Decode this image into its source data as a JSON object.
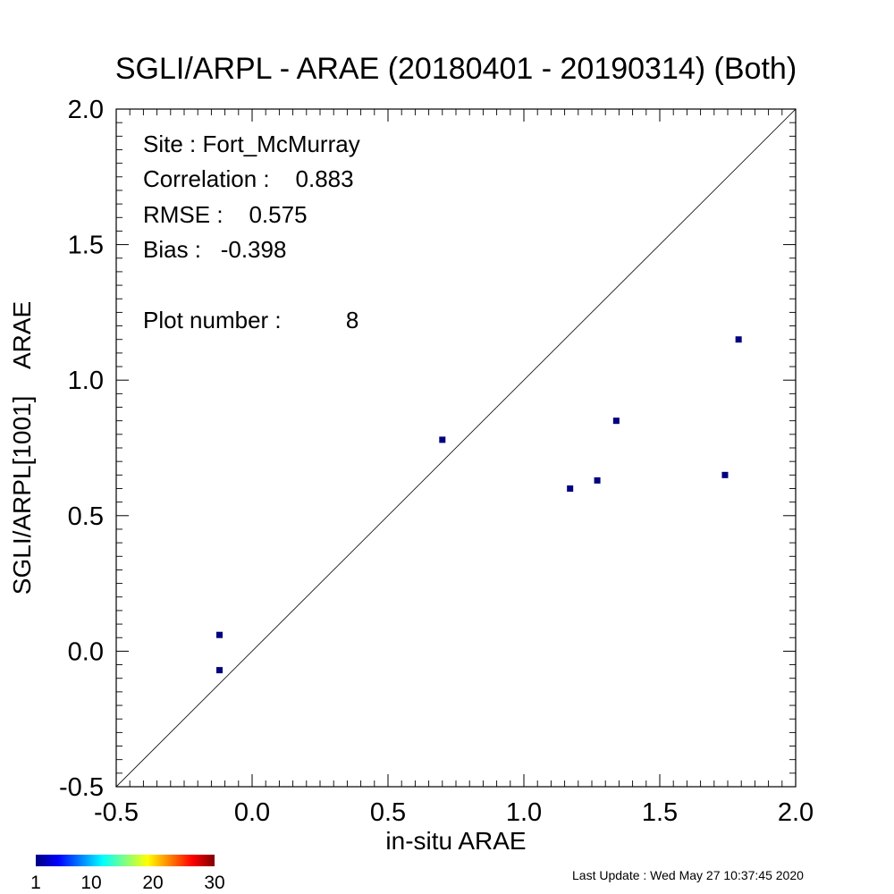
{
  "chart_data": {
    "type": "scatter",
    "title": "SGLI/ARPL - ARAE (20180401 - 20190314) (Both)",
    "xlabel": "in-situ ARAE",
    "ylabel": "SGLI/ARPL[1001]    ARAE",
    "xlim": [
      -0.5,
      2.0
    ],
    "ylim": [
      -0.5,
      2.0
    ],
    "x_ticks": [
      "-0.5",
      "0.0",
      "0.5",
      "1.0",
      "1.5",
      "2.0"
    ],
    "y_ticks": [
      "-0.5",
      "0.0",
      "0.5",
      "1.0",
      "1.5",
      "2.0"
    ],
    "one_to_one_line": true,
    "grid": false,
    "point_color": "#00007f",
    "points": [
      {
        "x": -0.12,
        "y": 0.06
      },
      {
        "x": -0.12,
        "y": -0.07
      },
      {
        "x": 0.7,
        "y": 0.78
      },
      {
        "x": 1.17,
        "y": 0.6
      },
      {
        "x": 1.27,
        "y": 0.63
      },
      {
        "x": 1.34,
        "y": 0.85
      },
      {
        "x": 1.74,
        "y": 0.65
      },
      {
        "x": 1.79,
        "y": 1.15
      }
    ],
    "stats": {
      "site": "Site : Fort_McMurray",
      "correlation": "Correlation :    0.883",
      "rmse": "RMSE :    0.575",
      "bias": "Bias :   -0.398",
      "plot_number": "Plot number :          8"
    },
    "colorbar": {
      "colors": [
        "#00007f",
        "#0000ff",
        "#0080ff",
        "#00ffff",
        "#80ff80",
        "#ffff00",
        "#ff8000",
        "#ff0000",
        "#7f0000"
      ],
      "labels": [
        "1",
        "10",
        "20",
        "30"
      ],
      "range": [
        1,
        30
      ]
    }
  },
  "footer": {
    "last_update": "Last Update : Wed May 27 10:37:45 2020"
  }
}
